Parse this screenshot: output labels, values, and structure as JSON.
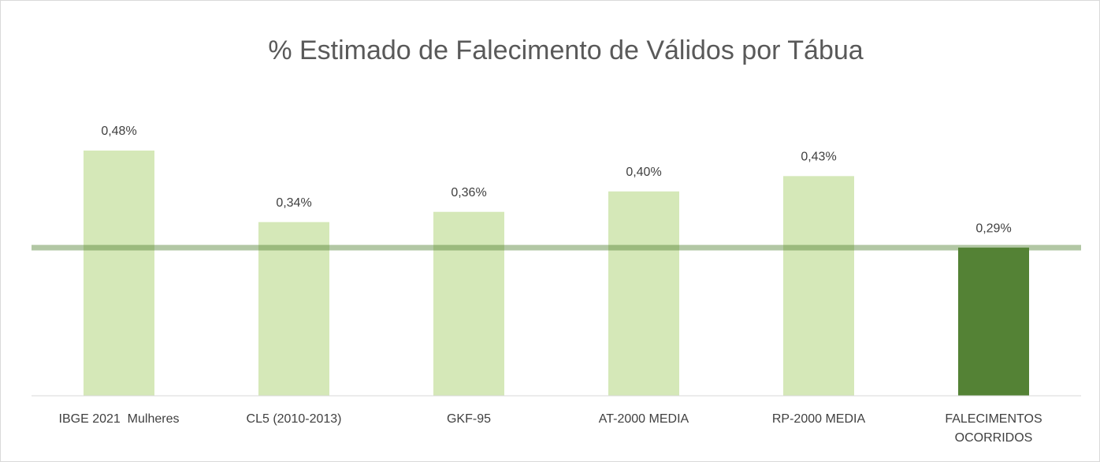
{
  "chart_data": {
    "type": "bar",
    "title": "% Estimado de Falecimento de Válidos por Tábua",
    "categories": [
      "IBGE 2021  Mulheres",
      "CL5 (2010-2013)",
      "GKF-95",
      "AT-2000 MEDIA",
      "RP-2000 MEDIA",
      "FALECIMENTOS OCORRIDOS"
    ],
    "values": [
      0.48,
      0.34,
      0.36,
      0.4,
      0.43,
      0.29
    ],
    "value_labels": [
      "0,48%",
      "0,34%",
      "0,36%",
      "0,40%",
      "0,43%",
      "0,29%"
    ],
    "colors": [
      "#d5e8b8",
      "#d5e8b8",
      "#d5e8b8",
      "#d5e8b8",
      "#d5e8b8",
      "#548235"
    ],
    "reference_line": {
      "value": 0.29,
      "color": "#548235"
    },
    "ylim": [
      0,
      0.5
    ]
  }
}
